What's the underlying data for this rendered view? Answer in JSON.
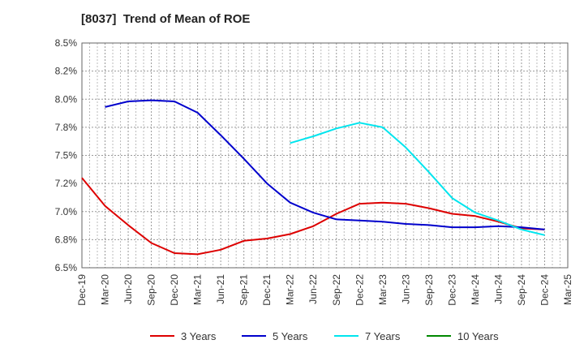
{
  "chart_data": {
    "type": "line",
    "title": "[8037]  Trend of Mean of ROE",
    "xlabel": "",
    "ylabel": "",
    "x": [
      "Dec-19",
      "Mar-20",
      "Jun-20",
      "Sep-20",
      "Dec-20",
      "Mar-21",
      "Jun-21",
      "Sep-21",
      "Dec-21",
      "Mar-22",
      "Jun-22",
      "Sep-22",
      "Dec-22",
      "Mar-23",
      "Jun-23",
      "Sep-23",
      "Dec-23",
      "Mar-24",
      "Jun-24",
      "Sep-24",
      "Dec-24",
      "Mar-25"
    ],
    "ylim": [
      6.5,
      8.5
    ],
    "yticks": [
      "6.5%",
      "6.8%",
      "7.0%",
      "7.2%",
      "7.5%",
      "7.8%",
      "8.0%",
      "8.2%",
      "8.5%"
    ],
    "grid": true,
    "legend_position": "bottom",
    "series": [
      {
        "name": "3 Years",
        "color": "#dd0000",
        "values": [
          7.3,
          7.05,
          6.88,
          6.72,
          6.63,
          6.62,
          6.66,
          6.74,
          6.76,
          6.8,
          6.87,
          6.98,
          7.07,
          7.08,
          7.07,
          7.03,
          6.98,
          6.96,
          6.91,
          6.85,
          6.84,
          null
        ]
      },
      {
        "name": "5 Years",
        "color": "#0000cc",
        "values": [
          null,
          7.93,
          7.98,
          7.99,
          7.98,
          7.88,
          7.68,
          7.47,
          7.25,
          7.08,
          6.99,
          6.93,
          6.92,
          6.91,
          6.89,
          6.88,
          6.86,
          6.86,
          6.87,
          6.86,
          6.84,
          null
        ]
      },
      {
        "name": "7 Years",
        "color": "#00e5ee",
        "values": [
          null,
          null,
          null,
          null,
          null,
          null,
          null,
          null,
          null,
          7.61,
          7.67,
          7.74,
          7.79,
          7.75,
          7.57,
          7.35,
          7.12,
          6.99,
          6.92,
          6.84,
          6.79,
          null
        ]
      },
      {
        "name": "10 Years",
        "color": "#008800",
        "values": [
          null,
          null,
          null,
          null,
          null,
          null,
          null,
          null,
          null,
          null,
          null,
          null,
          null,
          null,
          null,
          null,
          null,
          null,
          null,
          null,
          null,
          null
        ]
      }
    ]
  }
}
